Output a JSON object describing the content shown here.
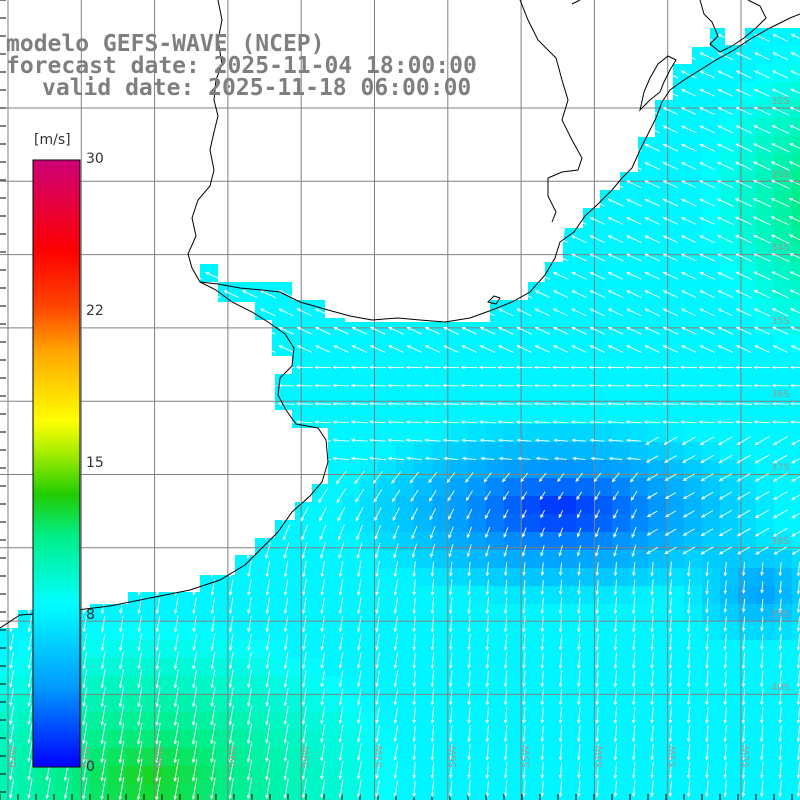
{
  "title": {
    "model": "modelo GEFS-WAVE (NCEP)",
    "forecast": "forecast date: 2025-11-04 18:00:00",
    "valid": "valid date: 2025-11-18 06:00:00"
  },
  "colorbar": {
    "unit": "[m/s]",
    "ticks": [
      "30",
      "22",
      "15",
      "8",
      "0"
    ],
    "tick_values": [
      30,
      22,
      15,
      8,
      0
    ],
    "range": [
      0,
      30
    ],
    "colors": [
      "#0000ff",
      "#00aaff",
      "#00ffff",
      "#00ff66",
      "#22cc00",
      "#ccff00",
      "#ffff00",
      "#ff9900",
      "#ff3300",
      "#ff0000",
      "#cc0066"
    ]
  },
  "map": {
    "latitude_labels": [
      "32S",
      "33S",
      "34S",
      "35S",
      "36S",
      "37S",
      "38S",
      "39S",
      "40S"
    ],
    "longitude_labels": [
      "62W",
      "61W",
      "60W",
      "59W",
      "58W",
      "57W",
      "56W",
      "55W",
      "54W",
      "53W",
      "52W"
    ],
    "land_color": "#ffffff",
    "coast_color": "#000000",
    "grid_color": "#808080",
    "arrow_color": "#ffffff"
  }
}
